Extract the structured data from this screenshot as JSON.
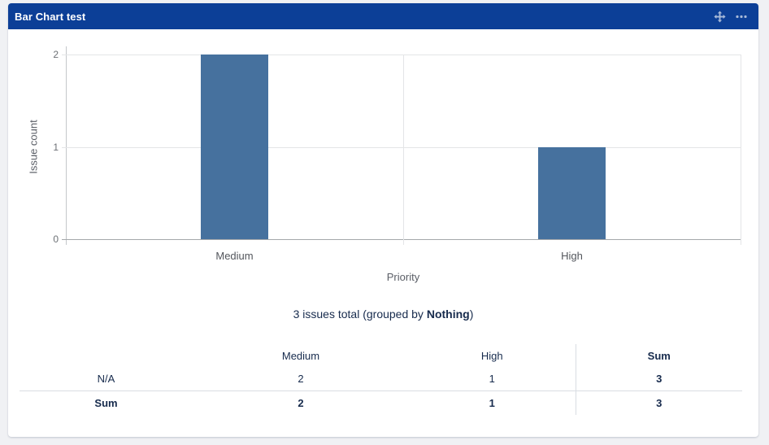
{
  "gadget": {
    "title": "Bar Chart test",
    "header_color": "#0C3F97",
    "icon_color": "#A8BAD9",
    "icons": [
      "move-icon",
      "ellipsis-icon"
    ]
  },
  "chart_data": {
    "type": "bar",
    "title": "",
    "categories": [
      "Medium",
      "High"
    ],
    "values": [
      2,
      1
    ],
    "xlabel": "Priority",
    "ylabel": "Issue count",
    "ylim": [
      0,
      2
    ],
    "yticks": [
      "0",
      "1",
      "2"
    ],
    "bar_color": "#46719E",
    "grid": true,
    "legend": false
  },
  "summary": {
    "text_before": "3 issues total (grouped by ",
    "group_by": "Nothing",
    "text_after": ")"
  },
  "table": {
    "headers": [
      "",
      "Medium",
      "High",
      "Sum"
    ],
    "rows": [
      {
        "label": "N/A",
        "values": [
          "2",
          "1",
          "3"
        ],
        "bold_row": false
      },
      {
        "label": "Sum",
        "values": [
          "2",
          "1",
          "3"
        ],
        "bold_row": true
      }
    ]
  },
  "colors": {
    "page_background": "#F0F1F4",
    "card_background": "#FFFFFF",
    "text_navy": "#172B4D",
    "axis_text": "#5A5E66",
    "gridline": "#E4E5E7"
  }
}
